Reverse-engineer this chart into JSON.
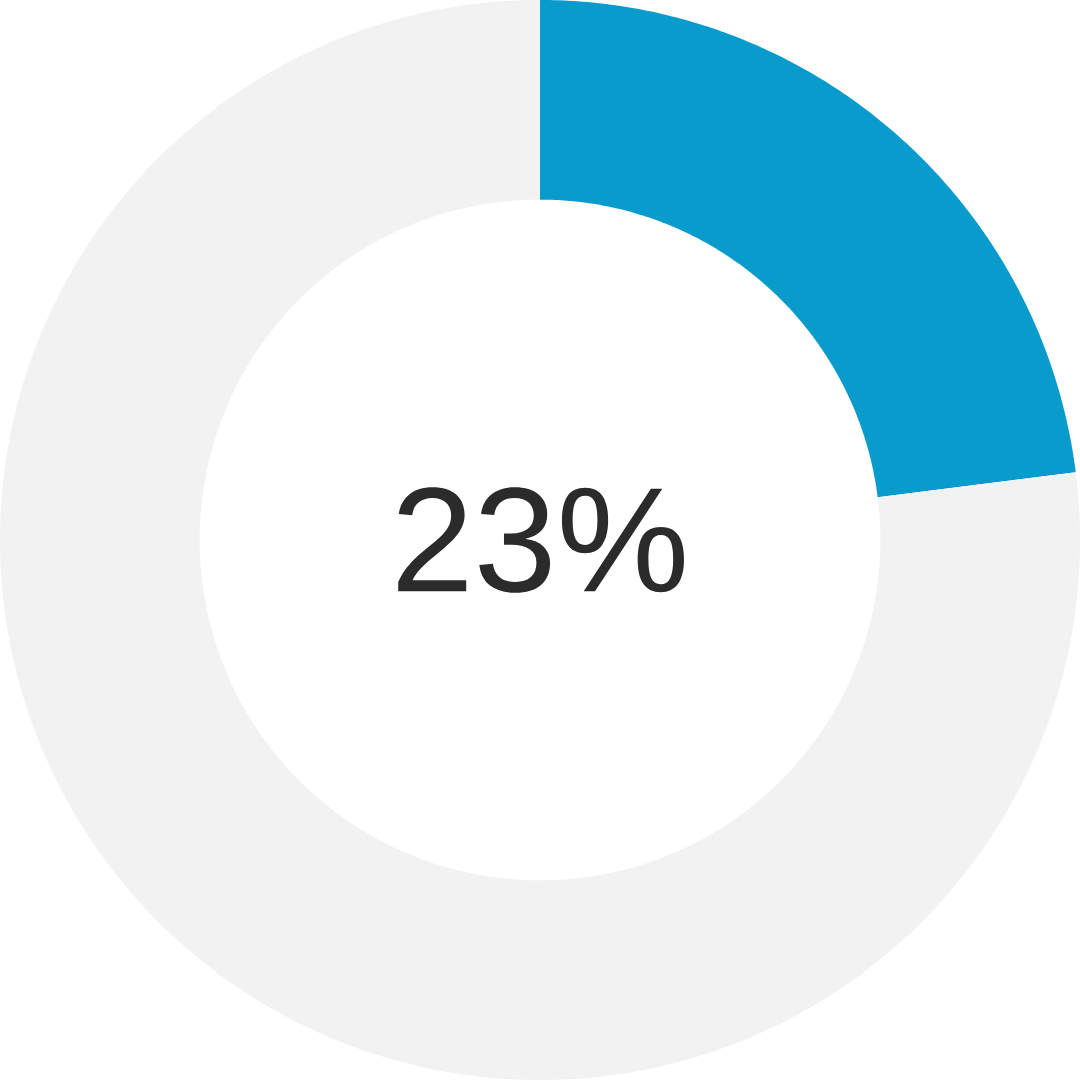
{
  "chart_data": {
    "type": "donut",
    "categories": [
      null,
      null
    ],
    "values": [
      23,
      77
    ],
    "colors": [
      "#0a9bcd",
      "#f2f2f2"
    ],
    "annotations": [
      "23%"
    ]
  }
}
